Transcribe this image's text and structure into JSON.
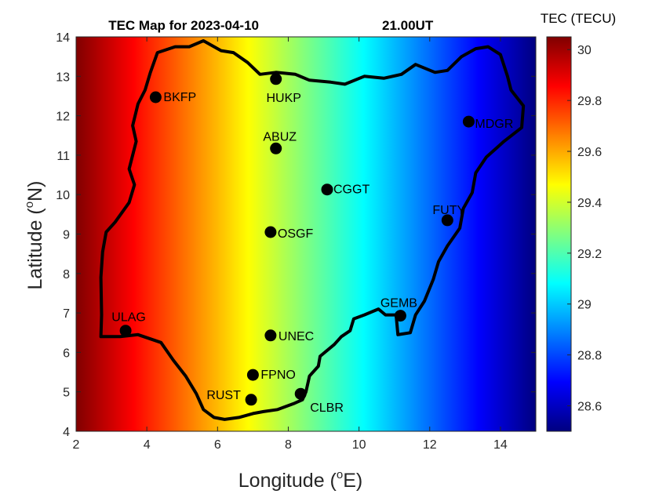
{
  "chart_data": {
    "type": "heatmap",
    "title_main": "TEC Map for 2023-04-10",
    "title_time": "21.00UT",
    "xlabel": "Longitude",
    "xlabel_sup": "o",
    "xlabel_tail": "E)",
    "ylabel": "Latitude",
    "ylabel_sup": "o",
    "ylabel_tail": "N)",
    "xlim": [
      2,
      15
    ],
    "ylim": [
      4,
      14
    ],
    "xticks": [
      2,
      4,
      6,
      8,
      10,
      12,
      14
    ],
    "yticks": [
      4,
      5,
      6,
      7,
      8,
      9,
      10,
      11,
      12,
      13,
      14
    ],
    "colorbar": {
      "title": "TEC (TECU)",
      "range": [
        28.5,
        30.05
      ],
      "ticks": [
        28.6,
        28.8,
        29,
        29.2,
        29.4,
        29.6,
        29.8,
        30
      ],
      "tick_labels": [
        "28.6",
        "28.8",
        "29",
        "29.2",
        "29.4",
        "29.6",
        "29.8",
        "30"
      ],
      "colormap": "jet"
    },
    "field": {
      "description_values": "TEC varies with longitude",
      "longitude": [
        2,
        15
      ],
      "tec": [
        30.05,
        28.5
      ]
    },
    "stations": [
      {
        "name": "BKFP",
        "lon": 4.25,
        "lat": 12.47
      },
      {
        "name": "HUKP",
        "lon": 7.65,
        "lat": 12.93
      },
      {
        "name": "MDGR",
        "lon": 13.1,
        "lat": 11.85
      },
      {
        "name": "ABUZ",
        "lon": 7.65,
        "lat": 11.17
      },
      {
        "name": "CGGT",
        "lon": 9.1,
        "lat": 10.13
      },
      {
        "name": "FUTY",
        "lon": 12.5,
        "lat": 9.35
      },
      {
        "name": "OSGF",
        "lon": 7.5,
        "lat": 9.05
      },
      {
        "name": "GEMB",
        "lon": 11.17,
        "lat": 6.93
      },
      {
        "name": "ULAG",
        "lon": 3.4,
        "lat": 6.55
      },
      {
        "name": "UNEC",
        "lon": 7.5,
        "lat": 6.43
      },
      {
        "name": "FPNO",
        "lon": 7.0,
        "lat": 5.43
      },
      {
        "name": "RUST",
        "lon": 6.95,
        "lat": 4.8
      },
      {
        "name": "CLBR",
        "lon": 8.35,
        "lat": 4.95
      }
    ],
    "border": [
      [
        2.7,
        6.4
      ],
      [
        2.72,
        6.95
      ],
      [
        2.7,
        7.9
      ],
      [
        2.75,
        8.55
      ],
      [
        2.85,
        9.05
      ],
      [
        3.1,
        9.3
      ],
      [
        3.5,
        9.8
      ],
      [
        3.65,
        10.25
      ],
      [
        3.5,
        10.65
      ],
      [
        3.7,
        11.35
      ],
      [
        3.6,
        11.75
      ],
      [
        3.75,
        12.3
      ],
      [
        3.95,
        12.65
      ],
      [
        4.1,
        13.1
      ],
      [
        4.3,
        13.6
      ],
      [
        4.8,
        13.75
      ],
      [
        5.2,
        13.75
      ],
      [
        5.6,
        13.9
      ],
      [
        6.1,
        13.65
      ],
      [
        6.45,
        13.6
      ],
      [
        6.85,
        13.35
      ],
      [
        7.2,
        13.05
      ],
      [
        7.65,
        13.1
      ],
      [
        8.2,
        13.05
      ],
      [
        8.6,
        12.9
      ],
      [
        9.2,
        12.85
      ],
      [
        9.6,
        12.8
      ],
      [
        10.15,
        13.0
      ],
      [
        10.7,
        12.95
      ],
      [
        11.2,
        13.05
      ],
      [
        11.6,
        13.3
      ],
      [
        12.15,
        13.1
      ],
      [
        12.5,
        13.15
      ],
      [
        12.9,
        13.5
      ],
      [
        13.3,
        13.7
      ],
      [
        13.65,
        13.75
      ],
      [
        14.0,
        13.55
      ],
      [
        14.2,
        13.0
      ],
      [
        14.3,
        12.65
      ],
      [
        14.65,
        12.25
      ],
      [
        14.6,
        11.7
      ],
      [
        14.1,
        11.35
      ],
      [
        13.6,
        10.95
      ],
      [
        13.3,
        10.55
      ],
      [
        13.2,
        10.05
      ],
      [
        12.95,
        9.65
      ],
      [
        12.85,
        9.15
      ],
      [
        12.5,
        8.7
      ],
      [
        12.25,
        8.3
      ],
      [
        12.1,
        7.85
      ],
      [
        11.85,
        7.3
      ],
      [
        11.6,
        6.95
      ],
      [
        11.45,
        6.5
      ],
      [
        11.1,
        6.45
      ],
      [
        11.05,
        6.95
      ],
      [
        10.75,
        6.95
      ],
      [
        10.55,
        7.1
      ],
      [
        10.15,
        6.95
      ],
      [
        9.85,
        6.85
      ],
      [
        9.75,
        6.55
      ],
      [
        9.5,
        6.4
      ],
      [
        9.3,
        6.2
      ],
      [
        8.9,
        5.9
      ],
      [
        8.85,
        5.65
      ],
      [
        8.6,
        5.4
      ],
      [
        8.5,
        5.0
      ],
      [
        8.4,
        4.8
      ],
      [
        8.15,
        4.7
      ],
      [
        7.7,
        4.55
      ],
      [
        7.3,
        4.5
      ],
      [
        7.0,
        4.45
      ],
      [
        6.6,
        4.35
      ],
      [
        6.2,
        4.3
      ],
      [
        5.9,
        4.35
      ],
      [
        5.6,
        4.55
      ],
      [
        5.4,
        4.95
      ],
      [
        5.1,
        5.4
      ],
      [
        4.75,
        5.8
      ],
      [
        4.4,
        6.25
      ],
      [
        3.75,
        6.45
      ],
      [
        3.25,
        6.4
      ],
      [
        2.7,
        6.4
      ]
    ]
  }
}
